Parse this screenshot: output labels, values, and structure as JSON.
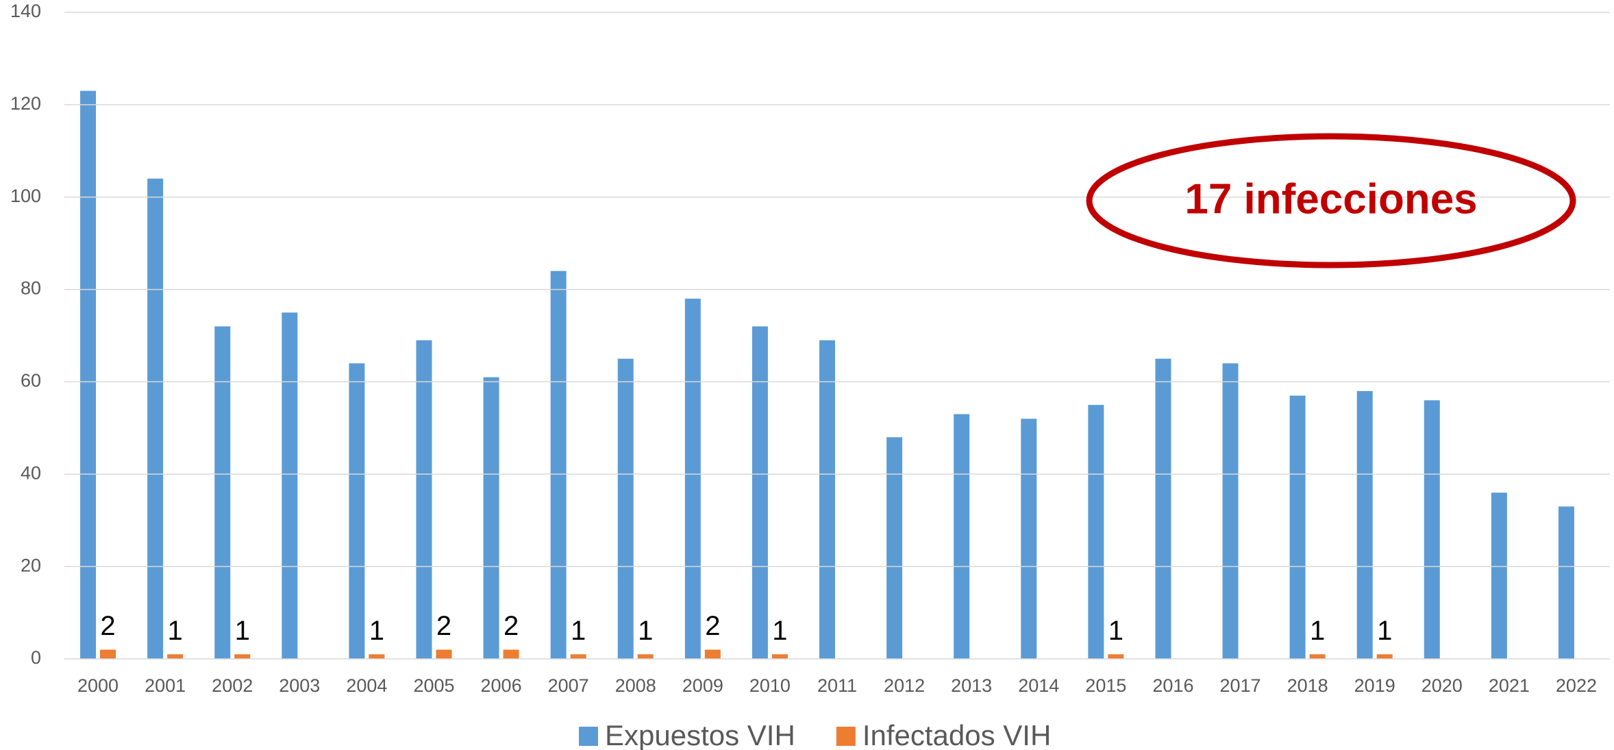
{
  "chart_data": {
    "type": "bar",
    "categories": [
      "2000",
      "2001",
      "2002",
      "2003",
      "2004",
      "2005",
      "2006",
      "2007",
      "2008",
      "2009",
      "2010",
      "2011",
      "2012",
      "2013",
      "2014",
      "2015",
      "2016",
      "2017",
      "2018",
      "2019",
      "2020",
      "2021",
      "2022"
    ],
    "series": [
      {
        "name": "Expuestos VIH",
        "color": "#5b9bd5",
        "values": [
          123,
          104,
          72,
          75,
          64,
          69,
          61,
          84,
          65,
          78,
          72,
          69,
          48,
          53,
          52,
          55,
          65,
          64,
          57,
          58,
          56,
          36,
          33
        ]
      },
      {
        "name": "Infectados VIH",
        "color": "#ed7d31",
        "values": [
          2,
          1,
          1,
          null,
          1,
          2,
          2,
          1,
          1,
          2,
          1,
          null,
          null,
          null,
          null,
          1,
          null,
          null,
          1,
          1,
          null,
          null,
          null
        ]
      }
    ],
    "ylim": [
      0,
      140
    ],
    "yticks": [
      0,
      20,
      40,
      60,
      80,
      100,
      120,
      140
    ],
    "grid": true,
    "legend": "bottom",
    "annotation": "17 infecciones"
  }
}
